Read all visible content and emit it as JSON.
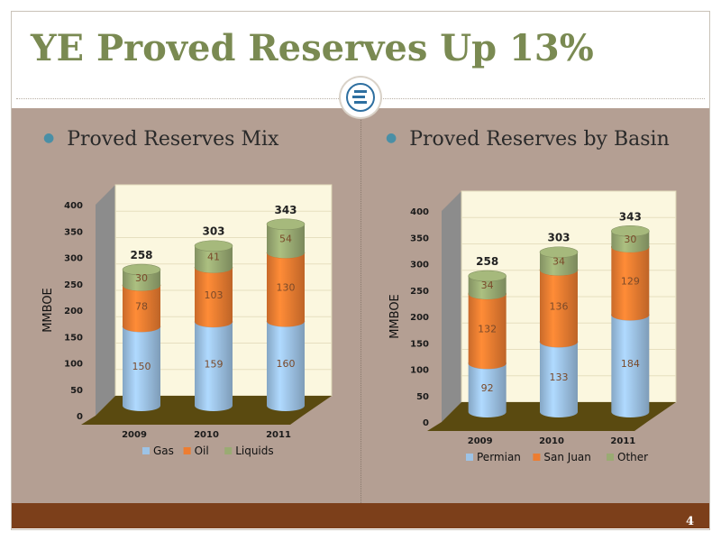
{
  "slide": {
    "title": "YE Proved Reserves Up 13%",
    "page_number": "4",
    "colors": {
      "title": "#7a8a52",
      "panel": "#b49f93",
      "footer": "#7c3f1a"
    }
  },
  "left": {
    "bullet": "Proved Reserves Mix"
  },
  "right": {
    "bullet": "Proved Reserves by Basin"
  },
  "chart_data": [
    {
      "type": "bar",
      "stacked": true,
      "title": "Proved Reserves Mix",
      "ylabel": "MMBOE",
      "ylim": [
        0,
        400
      ],
      "yticks": [
        "0",
        "50",
        "100",
        "150",
        "200",
        "250",
        "300",
        "350",
        "400"
      ],
      "categories": [
        "2009",
        "2010",
        "2011"
      ],
      "totals": [
        "258",
        "303",
        "343"
      ],
      "series": [
        {
          "name": "Gas",
          "values": [
            150,
            159,
            160
          ],
          "color": "#9dc3e6"
        },
        {
          "name": "Oil",
          "values": [
            78,
            103,
            130
          ],
          "color": "#ed7d31"
        },
        {
          "name": "Liquids",
          "values": [
            30,
            41,
            54
          ],
          "color": "#9aab73"
        }
      ],
      "legend": "bottom"
    },
    {
      "type": "bar",
      "stacked": true,
      "title": "Proved Reserves by Basin",
      "ylabel": "MMBOE",
      "ylim": [
        0,
        400
      ],
      "yticks": [
        "0",
        "50",
        "100",
        "150",
        "200",
        "250",
        "300",
        "350",
        "400"
      ],
      "categories": [
        "2009",
        "2010",
        "2011"
      ],
      "totals": [
        "258",
        "303",
        "343"
      ],
      "series": [
        {
          "name": "Permian",
          "values": [
            92,
            133,
            184
          ],
          "color": "#9dc3e6"
        },
        {
          "name": "San Juan",
          "values": [
            132,
            136,
            129
          ],
          "color": "#ed7d31"
        },
        {
          "name": "Other",
          "values": [
            34,
            34,
            30
          ],
          "color": "#9aab73"
        }
      ],
      "legend": "bottom"
    }
  ]
}
